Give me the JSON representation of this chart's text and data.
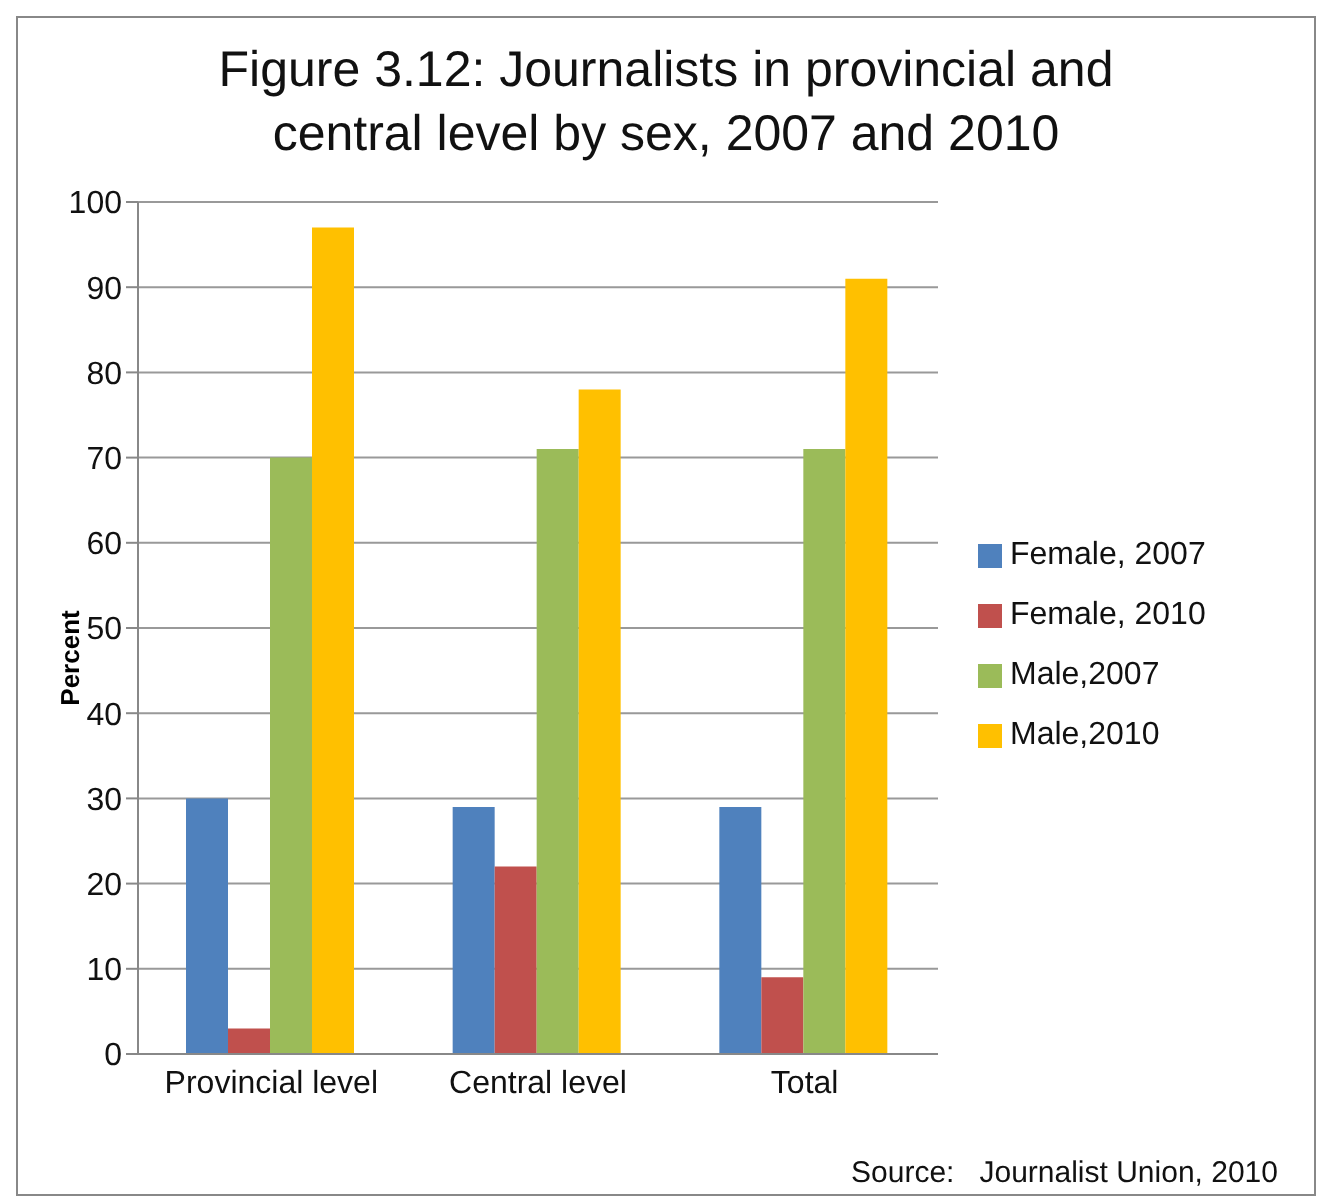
{
  "chart_data": {
    "type": "bar",
    "title": "Figure 3.12: Journalists in provincial and central level by sex, 2007 and 2010",
    "ylabel": "Percent",
    "categories": [
      "Provincial level",
      "Central level",
      "Total"
    ],
    "series": [
      {
        "name": "Female, 2007",
        "color": "#4f81bd",
        "values": [
          30,
          29,
          29
        ]
      },
      {
        "name": "Female, 2010",
        "color": "#c0504d",
        "values": [
          3,
          22,
          9
        ]
      },
      {
        "name": "Male,2007",
        "color": "#9bbb59",
        "values": [
          70,
          71,
          71
        ]
      },
      {
        "name": "Male,2010",
        "color": "#ffc000",
        "values": [
          97,
          78,
          91
        ]
      }
    ],
    "ylim": [
      0,
      100
    ],
    "yticks": [
      0,
      10,
      20,
      30,
      40,
      50,
      60,
      70,
      80,
      90,
      100
    ],
    "grid": "y",
    "legend": "right",
    "annotations": [
      "Source:   Journalist Union, 2010"
    ]
  }
}
